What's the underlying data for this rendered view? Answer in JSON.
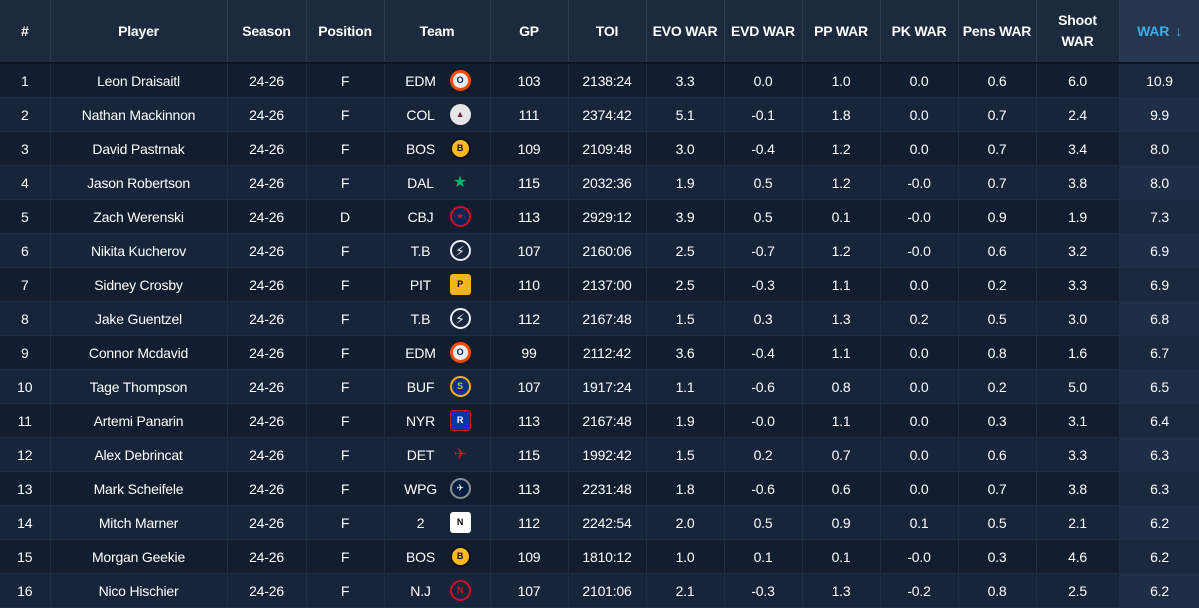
{
  "columns": [
    "#",
    "Player",
    "Season",
    "Position",
    "Team",
    "GP",
    "TOI",
    "EVO WAR",
    "EVD WAR",
    "PP WAR",
    "PK WAR",
    "Pens WAR",
    "Shoot WAR",
    "WAR"
  ],
  "sort": {
    "column": "WAR",
    "direction_icon": "↓"
  },
  "rows": [
    {
      "rank": "1",
      "player": "Leon Draisaitl",
      "season": "24-26",
      "position": "F",
      "team": "EDM",
      "team_icon": "oilers-logo-icon",
      "gp": "103",
      "toi": "2138:24",
      "evo": "3.3",
      "evd": "0.0",
      "pp": "1.0",
      "pk": "0.0",
      "pens": "0.6",
      "shoot": "6.0",
      "war": "10.9"
    },
    {
      "rank": "2",
      "player": "Nathan Mackinnon",
      "season": "24-26",
      "position": "F",
      "team": "COL",
      "team_icon": "avalanche-logo-icon",
      "gp": "111",
      "toi": "2374:42",
      "evo": "5.1",
      "evd": "-0.1",
      "pp": "1.8",
      "pk": "0.0",
      "pens": "0.7",
      "shoot": "2.4",
      "war": "9.9"
    },
    {
      "rank": "3",
      "player": "David Pastrnak",
      "season": "24-26",
      "position": "F",
      "team": "BOS",
      "team_icon": "bruins-logo-icon",
      "gp": "109",
      "toi": "2109:48",
      "evo": "3.0",
      "evd": "-0.4",
      "pp": "1.2",
      "pk": "0.0",
      "pens": "0.7",
      "shoot": "3.4",
      "war": "8.0"
    },
    {
      "rank": "4",
      "player": "Jason Robertson",
      "season": "24-26",
      "position": "F",
      "team": "DAL",
      "team_icon": "stars-logo-icon",
      "gp": "115",
      "toi": "2032:36",
      "evo": "1.9",
      "evd": "0.5",
      "pp": "1.2",
      "pk": "-0.0",
      "pens": "0.7",
      "shoot": "3.8",
      "war": "8.0"
    },
    {
      "rank": "5",
      "player": "Zach Werenski",
      "season": "24-26",
      "position": "D",
      "team": "CBJ",
      "team_icon": "blue-jackets-logo-icon",
      "gp": "113",
      "toi": "2929:12",
      "evo": "3.9",
      "evd": "0.5",
      "pp": "0.1",
      "pk": "-0.0",
      "pens": "0.9",
      "shoot": "1.9",
      "war": "7.3"
    },
    {
      "rank": "6",
      "player": "Nikita Kucherov",
      "season": "24-26",
      "position": "F",
      "team": "T.B",
      "team_icon": "lightning-logo-icon",
      "gp": "107",
      "toi": "2160:06",
      "evo": "2.5",
      "evd": "-0.7",
      "pp": "1.2",
      "pk": "-0.0",
      "pens": "0.6",
      "shoot": "3.2",
      "war": "6.9"
    },
    {
      "rank": "7",
      "player": "Sidney Crosby",
      "season": "24-26",
      "position": "F",
      "team": "PIT",
      "team_icon": "penguins-logo-icon",
      "gp": "110",
      "toi": "2137:00",
      "evo": "2.5",
      "evd": "-0.3",
      "pp": "1.1",
      "pk": "0.0",
      "pens": "0.2",
      "shoot": "3.3",
      "war": "6.9"
    },
    {
      "rank": "8",
      "player": "Jake Guentzel",
      "season": "24-26",
      "position": "F",
      "team": "T.B",
      "team_icon": "lightning-logo-icon",
      "gp": "112",
      "toi": "2167:48",
      "evo": "1.5",
      "evd": "0.3",
      "pp": "1.3",
      "pk": "0.2",
      "pens": "0.5",
      "shoot": "3.0",
      "war": "6.8"
    },
    {
      "rank": "9",
      "player": "Connor Mcdavid",
      "season": "24-26",
      "position": "F",
      "team": "EDM",
      "team_icon": "oilers-logo-icon",
      "gp": "99",
      "toi": "2112:42",
      "evo": "3.6",
      "evd": "-0.4",
      "pp": "1.1",
      "pk": "0.0",
      "pens": "0.8",
      "shoot": "1.6",
      "war": "6.7"
    },
    {
      "rank": "10",
      "player": "Tage Thompson",
      "season": "24-26",
      "position": "F",
      "team": "BUF",
      "team_icon": "sabres-logo-icon",
      "gp": "107",
      "toi": "1917:24",
      "evo": "1.1",
      "evd": "-0.6",
      "pp": "0.8",
      "pk": "0.0",
      "pens": "0.2",
      "shoot": "5.0",
      "war": "6.5"
    },
    {
      "rank": "11",
      "player": "Artemi Panarin",
      "season": "24-26",
      "position": "F",
      "team": "NYR",
      "team_icon": "rangers-logo-icon",
      "gp": "113",
      "toi": "2167:48",
      "evo": "1.9",
      "evd": "-0.0",
      "pp": "1.1",
      "pk": "0.0",
      "pens": "0.3",
      "shoot": "3.1",
      "war": "6.4"
    },
    {
      "rank": "12",
      "player": "Alex Debrincat",
      "season": "24-26",
      "position": "F",
      "team": "DET",
      "team_icon": "red-wings-logo-icon",
      "gp": "115",
      "toi": "1992:42",
      "evo": "1.5",
      "evd": "0.2",
      "pp": "0.7",
      "pk": "0.0",
      "pens": "0.6",
      "shoot": "3.3",
      "war": "6.3"
    },
    {
      "rank": "13",
      "player": "Mark Scheifele",
      "season": "24-26",
      "position": "F",
      "team": "WPG",
      "team_icon": "jets-logo-icon",
      "gp": "113",
      "toi": "2231:48",
      "evo": "1.8",
      "evd": "-0.6",
      "pp": "0.6",
      "pk": "0.0",
      "pens": "0.7",
      "shoot": "3.8",
      "war": "6.3"
    },
    {
      "rank": "14",
      "player": "Mitch Marner",
      "season": "24-26",
      "position": "F",
      "team": "2",
      "team_icon": "nhl-logo-icon",
      "gp": "112",
      "toi": "2242:54",
      "evo": "2.0",
      "evd": "0.5",
      "pp": "0.9",
      "pk": "0.1",
      "pens": "0.5",
      "shoot": "2.1",
      "war": "6.2"
    },
    {
      "rank": "15",
      "player": "Morgan Geekie",
      "season": "24-26",
      "position": "F",
      "team": "BOS",
      "team_icon": "bruins-logo-icon",
      "gp": "109",
      "toi": "1810:12",
      "evo": "1.0",
      "evd": "0.1",
      "pp": "0.1",
      "pk": "-0.0",
      "pens": "0.3",
      "shoot": "4.6",
      "war": "6.2"
    },
    {
      "rank": "16",
      "player": "Nico Hischier",
      "season": "24-26",
      "position": "F",
      "team": "N.J",
      "team_icon": "devils-logo-icon",
      "gp": "107",
      "toi": "2101:06",
      "evo": "2.1",
      "evd": "-0.3",
      "pp": "1.3",
      "pk": "-0.2",
      "pens": "0.8",
      "shoot": "2.5",
      "war": "6.2"
    }
  ]
}
